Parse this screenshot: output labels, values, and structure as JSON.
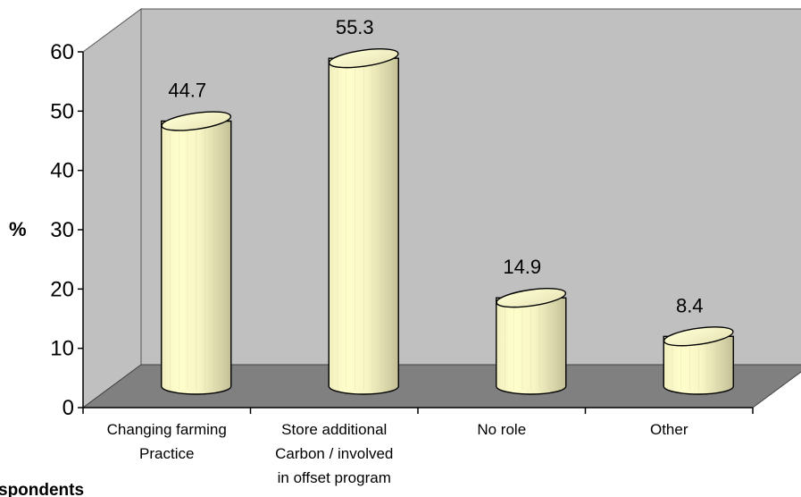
{
  "chart_data": {
    "type": "bar",
    "title": "",
    "ylabel": "%",
    "xlabel": "",
    "categories": [
      [
        "Changing farming",
        "Practice"
      ],
      [
        "Store additional",
        "Carbon / involved",
        "in offset program"
      ],
      [
        "No role"
      ],
      [
        "Other"
      ]
    ],
    "values": [
      44.7,
      55.3,
      14.9,
      8.4
    ],
    "value_labels": [
      "44.7",
      "55.3",
      "14.9",
      "8.4"
    ],
    "ylim": [
      0,
      60
    ],
    "yticks": [
      "0",
      "10",
      "20",
      "30",
      "40",
      "50",
      "60"
    ],
    "grid": false,
    "legend": "none",
    "style": "3d-cylinder",
    "colors": {
      "wall": "#c0c0c0",
      "floor": "#808080",
      "bar_light": "#ffffcc",
      "bar_dark": "#c6c29a",
      "outline": "#000000"
    }
  },
  "footnote": "spondents"
}
